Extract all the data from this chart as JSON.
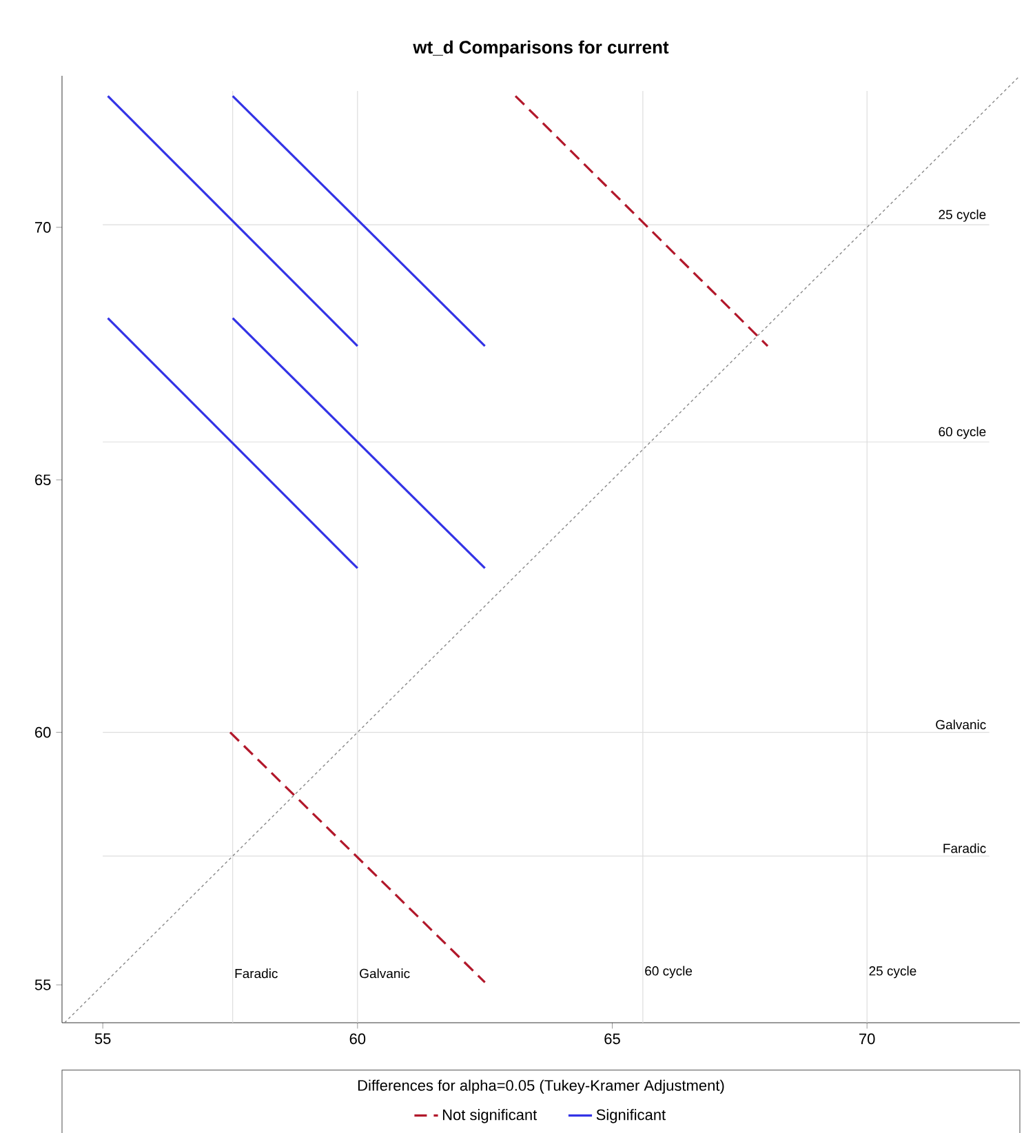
{
  "chart_data": {
    "type": "line",
    "title": "wt_d Comparisons for current",
    "legend_title": "Differences for alpha=0.05 (Tukey-Kramer Adjustment)",
    "xlim": [
      54.2,
      73.0
    ],
    "ylim": [
      54.25,
      73.0
    ],
    "xticks": [
      55,
      60,
      65,
      70
    ],
    "yticks": [
      55,
      60,
      65,
      70
    ],
    "legend": "bottom",
    "grid": false,
    "series": [
      {
        "name": "Not significant",
        "color": "#b2182b",
        "line_style": "dashed",
        "x": [
          57.5,
          62.5
        ],
        "values": [
          60.0,
          55.05
        ]
      },
      {
        "color": "#b2182b",
        "line_style": "dashed",
        "x": [
          63.1,
          68.05
        ],
        "values": [
          72.6,
          67.65
        ]
      },
      {
        "name": "Significant",
        "color": "#3333e6",
        "line_style": "solid",
        "x": [
          55.1,
          60.0
        ],
        "values": [
          72.6,
          67.65
        ]
      },
      {
        "color": "#3333e6",
        "line_style": "solid",
        "x": [
          57.55,
          62.5
        ],
        "values": [
          72.6,
          67.65
        ]
      },
      {
        "color": "#3333e6",
        "line_style": "solid",
        "x": [
          55.1,
          60.0
        ],
        "values": [
          68.2,
          63.25
        ]
      },
      {
        "color": "#3333e6",
        "line_style": "solid",
        "x": [
          57.55,
          62.5
        ],
        "values": [
          68.2,
          63.25
        ]
      },
      {
        "color": "#888888",
        "line_style": "dotted",
        "x": [
          54.25,
          73.0
        ],
        "values": [
          54.25,
          73.0
        ]
      }
    ],
    "ref_lines": [
      {
        "axis": "x",
        "value": 57.55,
        "label": "Faradic",
        "color": "#dddddd"
      },
      {
        "axis": "x",
        "value": 60.0,
        "label": "Galvanic",
        "color": "#dddddd"
      },
      {
        "axis": "x",
        "value": 65.6,
        "label": "60 cycle",
        "color": "#dddddd"
      },
      {
        "axis": "x",
        "value": 70.0,
        "label": "25 cycle",
        "color": "#dddddd"
      },
      {
        "axis": "y",
        "value": 70.05,
        "label": "25 cycle",
        "color": "#dddddd"
      },
      {
        "axis": "y",
        "value": 65.75,
        "label": "60 cycle",
        "color": "#dddddd"
      },
      {
        "axis": "y",
        "value": 60.0,
        "label": "Galvanic",
        "color": "#dddddd"
      },
      {
        "axis": "y",
        "value": 57.55,
        "label": "Faradic",
        "color": "#dddddd"
      }
    ]
  }
}
